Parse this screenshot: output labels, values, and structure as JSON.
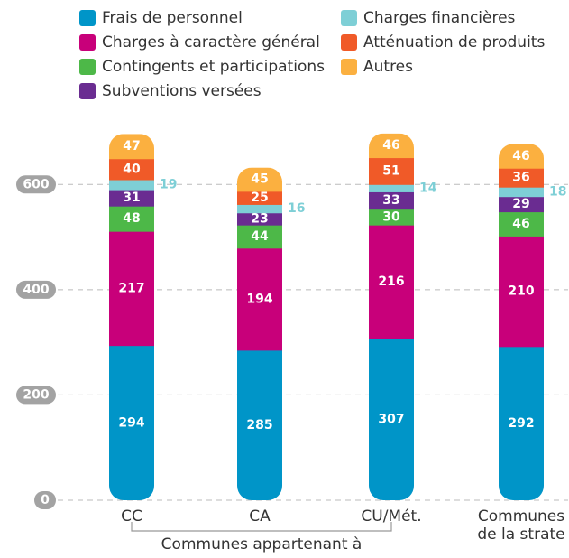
{
  "chart_data": {
    "type": "stacked_bar",
    "categories": [
      "CC",
      "CA",
      "CU/Mét.",
      "Communes de la strate"
    ],
    "annotation": "Communes appartenant à",
    "series": [
      {
        "name": "Frais de personnel",
        "color": "#0095c8",
        "values": [
          294,
          285,
          307,
          292
        ]
      },
      {
        "name": "Charges à caractère général",
        "color": "#c8007a",
        "values": [
          217,
          194,
          216,
          210
        ]
      },
      {
        "name": "Contingents et participations",
        "color": "#4db848",
        "values": [
          48,
          44,
          30,
          46
        ]
      },
      {
        "name": "Subventions versées",
        "color": "#6a2c91",
        "values": [
          31,
          23,
          33,
          29
        ]
      },
      {
        "name": "Charges financières",
        "color": "#7ecfd6",
        "values": [
          19,
          16,
          14,
          18
        ]
      },
      {
        "name": "Atténuation de produits",
        "color": "#f05a28",
        "values": [
          40,
          25,
          51,
          36
        ]
      },
      {
        "name": "Autres",
        "color": "#fbb040",
        "values": [
          47,
          45,
          46,
          46
        ]
      }
    ],
    "ylim": [
      0,
      700
    ],
    "yticks": [
      0,
      200,
      400,
      600
    ],
    "grid": true
  }
}
